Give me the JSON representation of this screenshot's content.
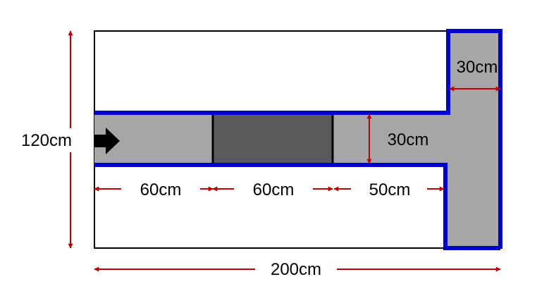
{
  "diagram": {
    "labels": {
      "height_total": "120cm",
      "width_total": "200cm",
      "branch_width": "30cm",
      "channel_width": "30cm",
      "segment_1": "60cm",
      "segment_2": "60cm",
      "segment_3": "50cm"
    },
    "colors": {
      "channel_fill": "#a6a6a6",
      "block_fill": "#595959",
      "wall": "#0000cc",
      "dimension_arrow": "#c00000",
      "outline": "#000000",
      "flow_arrow": "#000000"
    },
    "icons": {
      "flow": "right-arrow-icon"
    }
  }
}
